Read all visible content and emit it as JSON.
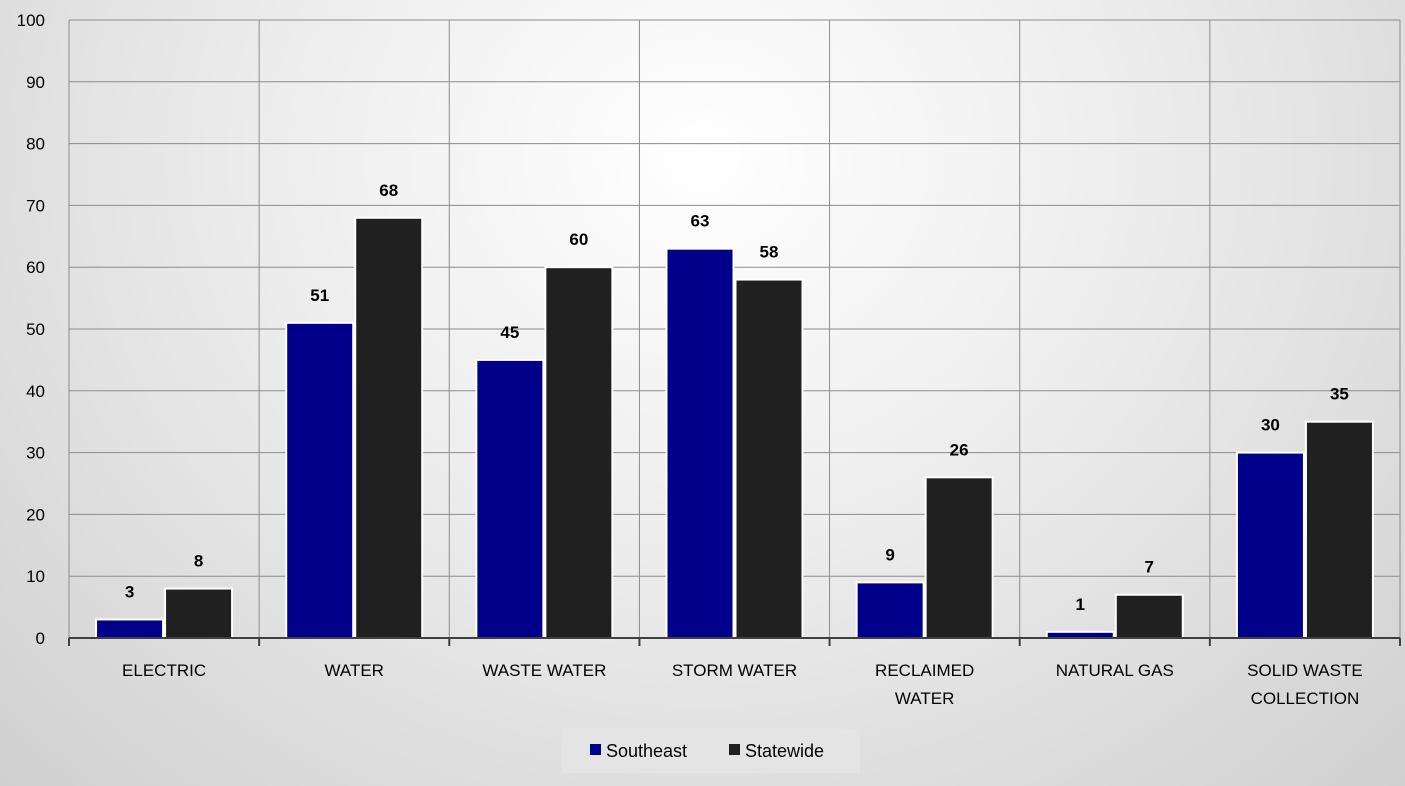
{
  "chart_data": {
    "type": "bar",
    "categories": [
      [
        "ELECTRIC"
      ],
      [
        "WATER"
      ],
      [
        "WASTE WATER"
      ],
      [
        "STORM WATER"
      ],
      [
        "RECLAIMED",
        "WATER"
      ],
      [
        "NATURAL GAS"
      ],
      [
        "SOLID WASTE",
        "COLLECTION"
      ]
    ],
    "series": [
      {
        "name": "Southeast",
        "color": "#00008b",
        "values": [
          3,
          51,
          45,
          63,
          9,
          1,
          30
        ]
      },
      {
        "name": "Statewide",
        "color": "#202020",
        "values": [
          8,
          68,
          60,
          58,
          26,
          7,
          35
        ]
      }
    ],
    "ylim": [
      0,
      100
    ],
    "yticks": [
      0,
      10,
      20,
      30,
      40,
      50,
      60,
      70,
      80,
      90,
      100
    ],
    "grid": true,
    "data_labels": true,
    "legend_position": "bottom",
    "title": "",
    "xlabel": "",
    "ylabel": ""
  }
}
